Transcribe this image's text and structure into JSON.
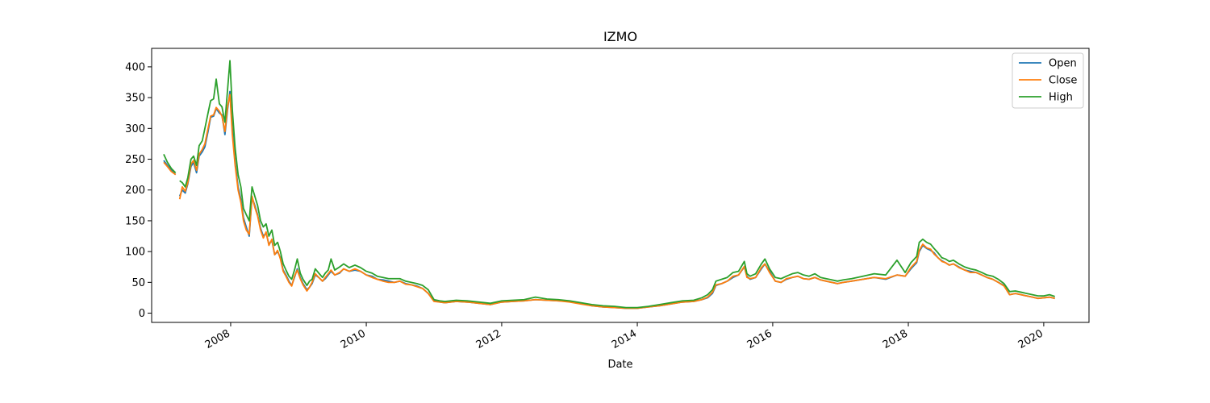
{
  "chart_data": {
    "type": "line",
    "title": "IZMO",
    "xlabel": "Date",
    "ylabel": "",
    "xlim": [
      "2006-11-01",
      "2020-09-01"
    ],
    "ylim": [
      -15,
      430
    ],
    "x_ticks": [
      "2008",
      "2010",
      "2012",
      "2014",
      "2016",
      "2018",
      "2020"
    ],
    "y_ticks": [
      0,
      50,
      100,
      150,
      200,
      250,
      300,
      350,
      400
    ],
    "grid": false,
    "legend_position": "top-right",
    "colors": {
      "Open": "#1f77b4",
      "Close": "#ff7f0e",
      "High": "#2ca02c"
    },
    "series_names": [
      "Open",
      "Close",
      "High"
    ],
    "x": [
      "2007-01-05",
      "2007-01-25",
      "2007-02-15",
      "2007-03-10",
      "2007-03-20",
      "2007-04-01",
      "2007-04-15",
      "2007-05-01",
      "2007-05-15",
      "2007-06-01",
      "2007-06-15",
      "2007-07-01",
      "2007-07-15",
      "2007-08-01",
      "2007-08-15",
      "2007-09-01",
      "2007-09-15",
      "2007-10-01",
      "2007-10-15",
      "2007-11-01",
      "2007-11-15",
      "2007-12-01",
      "2007-12-15",
      "2007-12-28",
      "2008-01-10",
      "2008-01-25",
      "2008-02-10",
      "2008-02-25",
      "2008-03-10",
      "2008-03-25",
      "2008-04-10",
      "2008-04-25",
      "2008-05-10",
      "2008-05-25",
      "2008-06-10",
      "2008-06-25",
      "2008-07-10",
      "2008-07-25",
      "2008-08-10",
      "2008-08-25",
      "2008-09-10",
      "2008-09-25",
      "2008-10-10",
      "2008-10-25",
      "2008-11-10",
      "2008-11-25",
      "2008-12-10",
      "2008-12-25",
      "2009-01-10",
      "2009-01-25",
      "2009-02-15",
      "2009-03-01",
      "2009-03-15",
      "2009-04-01",
      "2009-04-20",
      "2009-05-10",
      "2009-05-25",
      "2009-06-10",
      "2009-06-25",
      "2009-07-15",
      "2009-08-10",
      "2009-09-01",
      "2009-10-01",
      "2009-11-01",
      "2009-12-01",
      "2010-01-01",
      "2010-02-01",
      "2010-03-01",
      "2010-04-01",
      "2010-05-01",
      "2010-06-01",
      "2010-07-01",
      "2010-08-01",
      "2010-09-01",
      "2010-10-01",
      "2010-11-01",
      "2010-12-01",
      "2011-01-01",
      "2011-02-01",
      "2011-03-01",
      "2011-05-01",
      "2011-07-01",
      "2011-09-01",
      "2011-11-01",
      "2012-01-01",
      "2012-03-01",
      "2012-05-01",
      "2012-07-01",
      "2012-09-01",
      "2012-11-01",
      "2013-01-01",
      "2013-03-01",
      "2013-05-01",
      "2013-07-01",
      "2013-09-01",
      "2013-11-01",
      "2014-01-01",
      "2014-03-01",
      "2014-05-01",
      "2014-07-01",
      "2014-09-01",
      "2014-11-01",
      "2014-12-15",
      "2015-01-15",
      "2015-02-10",
      "2015-03-01",
      "2015-04-01",
      "2015-05-01",
      "2015-06-01",
      "2015-07-01",
      "2015-08-01",
      "2015-08-15",
      "2015-09-01",
      "2015-10-01",
      "2015-11-01",
      "2015-11-20",
      "2015-12-15",
      "2016-01-15",
      "2016-02-15",
      "2016-03-15",
      "2016-04-15",
      "2016-05-15",
      "2016-06-15",
      "2016-07-15",
      "2016-08-15",
      "2016-09-15",
      "2016-10-15",
      "2016-11-15",
      "2016-12-15",
      "2017-01-15",
      "2017-03-01",
      "2017-05-01",
      "2017-07-01",
      "2017-09-01",
      "2017-11-01",
      "2017-12-15",
      "2018-01-15",
      "2018-02-15",
      "2018-03-01",
      "2018-03-20",
      "2018-04-10",
      "2018-05-01",
      "2018-05-20",
      "2018-06-10",
      "2018-07-01",
      "2018-07-20",
      "2018-08-10",
      "2018-09-01",
      "2018-10-01",
      "2018-11-01",
      "2018-12-01",
      "2019-01-01",
      "2019-02-01",
      "2019-03-01",
      "2019-04-01",
      "2019-05-01",
      "2019-06-01",
      "2019-07-01",
      "2019-08-01",
      "2019-09-01",
      "2019-10-01",
      "2019-11-01",
      "2019-12-01",
      "2020-01-01",
      "2020-02-01",
      "2020-03-01"
    ],
    "series": [
      {
        "name": "Open",
        "values": [
          248,
          240,
          232,
          225,
          null,
          190,
          200,
          195,
          210,
          238,
          245,
          228,
          255,
          262,
          270,
          295,
          318,
          320,
          332,
          325,
          322,
          290,
          330,
          360,
          300,
          245,
          205,
          185,
          155,
          140,
          125,
          188,
          175,
          160,
          138,
          125,
          130,
          112,
          118,
          95,
          100,
          90,
          70,
          62,
          52,
          45,
          58,
          72,
          58,
          48,
          38,
          42,
          48,
          62,
          58,
          52,
          56,
          62,
          68,
          62,
          65,
          72,
          68,
          70,
          68,
          62,
          60,
          55,
          54,
          52,
          50,
          52,
          48,
          46,
          44,
          40,
          32,
          20,
          18,
          17,
          19,
          18,
          16,
          14,
          18,
          19,
          20,
          22,
          21,
          20,
          19,
          16,
          12,
          10,
          9,
          8,
          8,
          10,
          12,
          15,
          18,
          19,
          22,
          25,
          32,
          45,
          48,
          52,
          58,
          62,
          75,
          60,
          55,
          58,
          72,
          80,
          68,
          52,
          50,
          55,
          58,
          60,
          56,
          55,
          58,
          54,
          52,
          50,
          48,
          50,
          52,
          55,
          58,
          55,
          62,
          60,
          72,
          82,
          100,
          110,
          105,
          102,
          98,
          90,
          85,
          82,
          78,
          80,
          75,
          70,
          68,
          66,
          62,
          58,
          55,
          50,
          45,
          30,
          32,
          30,
          28,
          26,
          24,
          25,
          26,
          24
        ]
      },
      {
        "name": "Close",
        "values": [
          245,
          238,
          230,
          225,
          null,
          185,
          205,
          198,
          212,
          242,
          248,
          232,
          258,
          266,
          275,
          300,
          320,
          322,
          334,
          328,
          320,
          295,
          335,
          355,
          290,
          240,
          200,
          180,
          150,
          135,
          128,
          190,
          172,
          158,
          135,
          122,
          132,
          110,
          120,
          95,
          102,
          88,
          68,
          60,
          50,
          44,
          60,
          70,
          56,
          46,
          36,
          42,
          50,
          64,
          58,
          52,
          58,
          64,
          70,
          62,
          66,
          72,
          68,
          72,
          68,
          62,
          58,
          55,
          52,
          50,
          50,
          52,
          47,
          46,
          43,
          40,
          32,
          19,
          18,
          17,
          19,
          18,
          16,
          14,
          18,
          19,
          20,
          22,
          21,
          20,
          18,
          15,
          12,
          10,
          9,
          8,
          8,
          10,
          12,
          15,
          18,
          19,
          22,
          26,
          34,
          46,
          48,
          52,
          60,
          62,
          76,
          58,
          56,
          58,
          74,
          80,
          66,
          52,
          50,
          56,
          58,
          60,
          56,
          55,
          58,
          54,
          52,
          50,
          48,
          50,
          52,
          55,
          58,
          56,
          62,
          60,
          74,
          84,
          102,
          112,
          106,
          104,
          96,
          90,
          84,
          82,
          78,
          80,
          74,
          70,
          66,
          66,
          62,
          58,
          55,
          50,
          44,
          30,
          32,
          30,
          28,
          26,
          24,
          25,
          26,
          24
        ]
      },
      {
        "name": "High",
        "values": [
          258,
          245,
          235,
          228,
          null,
          215,
          212,
          205,
          220,
          250,
          255,
          240,
          272,
          280,
          300,
          325,
          345,
          348,
          380,
          340,
          335,
          310,
          362,
          410,
          330,
          268,
          225,
          205,
          170,
          160,
          150,
          205,
          190,
          175,
          150,
          140,
          145,
          125,
          135,
          110,
          115,
          100,
          80,
          70,
          60,
          55,
          70,
          88,
          65,
          55,
          45,
          52,
          55,
          72,
          65,
          58,
          65,
          70,
          88,
          70,
          75,
          80,
          74,
          78,
          74,
          68,
          65,
          60,
          58,
          56,
          56,
          56,
          52,
          50,
          48,
          45,
          38,
          22,
          20,
          19,
          21,
          20,
          18,
          16,
          20,
          21,
          22,
          26,
          23,
          22,
          20,
          17,
          14,
          12,
          11,
          9,
          9,
          11,
          14,
          17,
          20,
          21,
          25,
          30,
          38,
          52,
          55,
          58,
          66,
          68,
          84,
          64,
          60,
          64,
          80,
          88,
          72,
          58,
          56,
          60,
          64,
          66,
          62,
          60,
          64,
          58,
          56,
          54,
          52,
          54,
          56,
          60,
          64,
          62,
          86,
          66,
          82,
          92,
          115,
          120,
          115,
          112,
          105,
          98,
          90,
          88,
          84,
          86,
          80,
          75,
          72,
          70,
          66,
          62,
          60,
          55,
          48,
          35,
          36,
          34,
          32,
          30,
          28,
          28,
          30,
          27
        ]
      }
    ]
  }
}
